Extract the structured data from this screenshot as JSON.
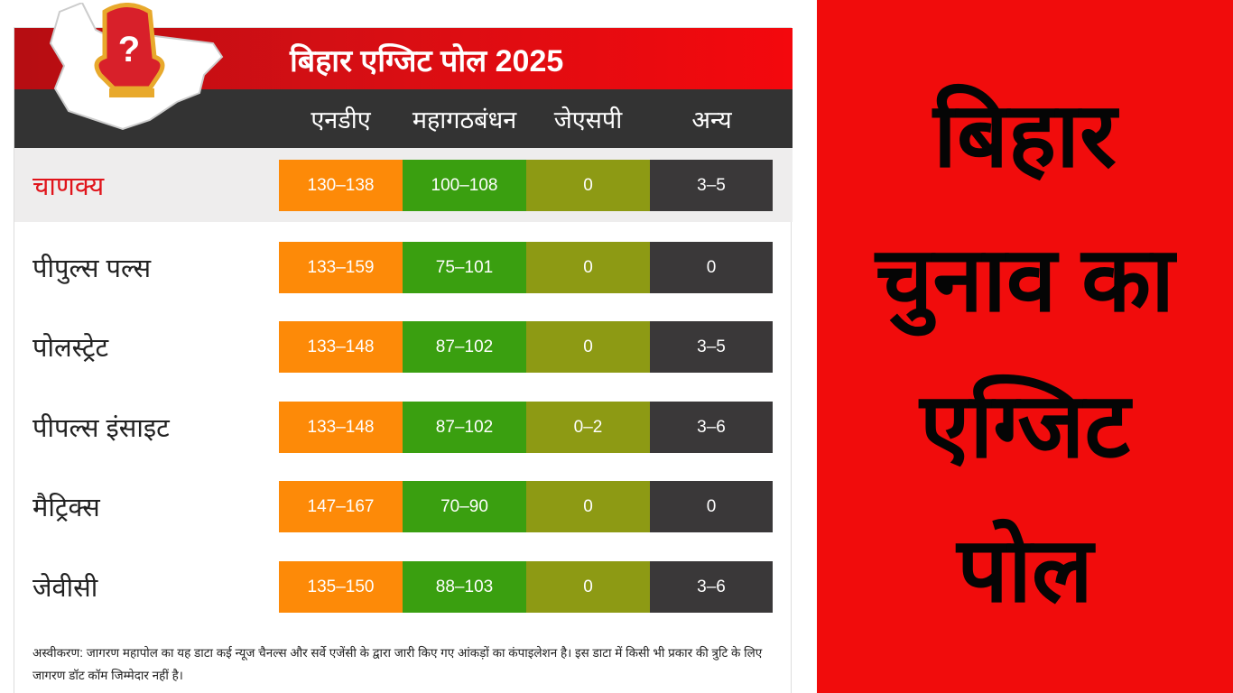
{
  "infographic": {
    "title": "बिहार एग्जिट पोल 2025",
    "columns": [
      "एनडीए",
      "महागठबंधन",
      "जेएसपी",
      "अन्य"
    ],
    "rows": [
      {
        "agency": "चाणक्य",
        "values": [
          "130-138",
          "100-108",
          "0",
          "3-5"
        ],
        "highlighted": true
      },
      {
        "agency": "पीपुल्स पल्स",
        "values": [
          "133-159",
          "75-101",
          "0",
          "0"
        ]
      },
      {
        "agency": "पोलस्ट्रेट",
        "values": [
          "133-148",
          "87-102",
          "0",
          "3-5"
        ]
      },
      {
        "agency": "पीपल्स इंसाइट",
        "values": [
          "133-148",
          "87-102",
          "0-2",
          "3-6"
        ]
      },
      {
        "agency": "मैट्रिक्स",
        "values": [
          "147-167",
          "70-90",
          "0",
          "0"
        ]
      },
      {
        "agency": "जेवीसी",
        "values": [
          "135-150",
          "88-103",
          "0",
          "3-6"
        ]
      }
    ],
    "disclaimer": "अस्वीकरण: जागरण महापोल का यह डाटा कई न्यूज चैनल्स और सर्वे एजेंसी के द्वारा जारी किए गए आंकड़ों का कंपाइलेशन है। इस डाटा में किसी भी प्रकार की त्रुटि के लिए जागरण डॉट कॉम जिम्मेदार नहीं है।",
    "colors": {
      "nda": "#fd8a08",
      "mgb": "#3a9f10",
      "jsp": "#8d9a14",
      "others": "#3a3839",
      "header": "#d40f14"
    }
  },
  "headline": {
    "lines": [
      "बिहार",
      "चुनाव का",
      "एग्जिट",
      "पोल"
    ]
  }
}
